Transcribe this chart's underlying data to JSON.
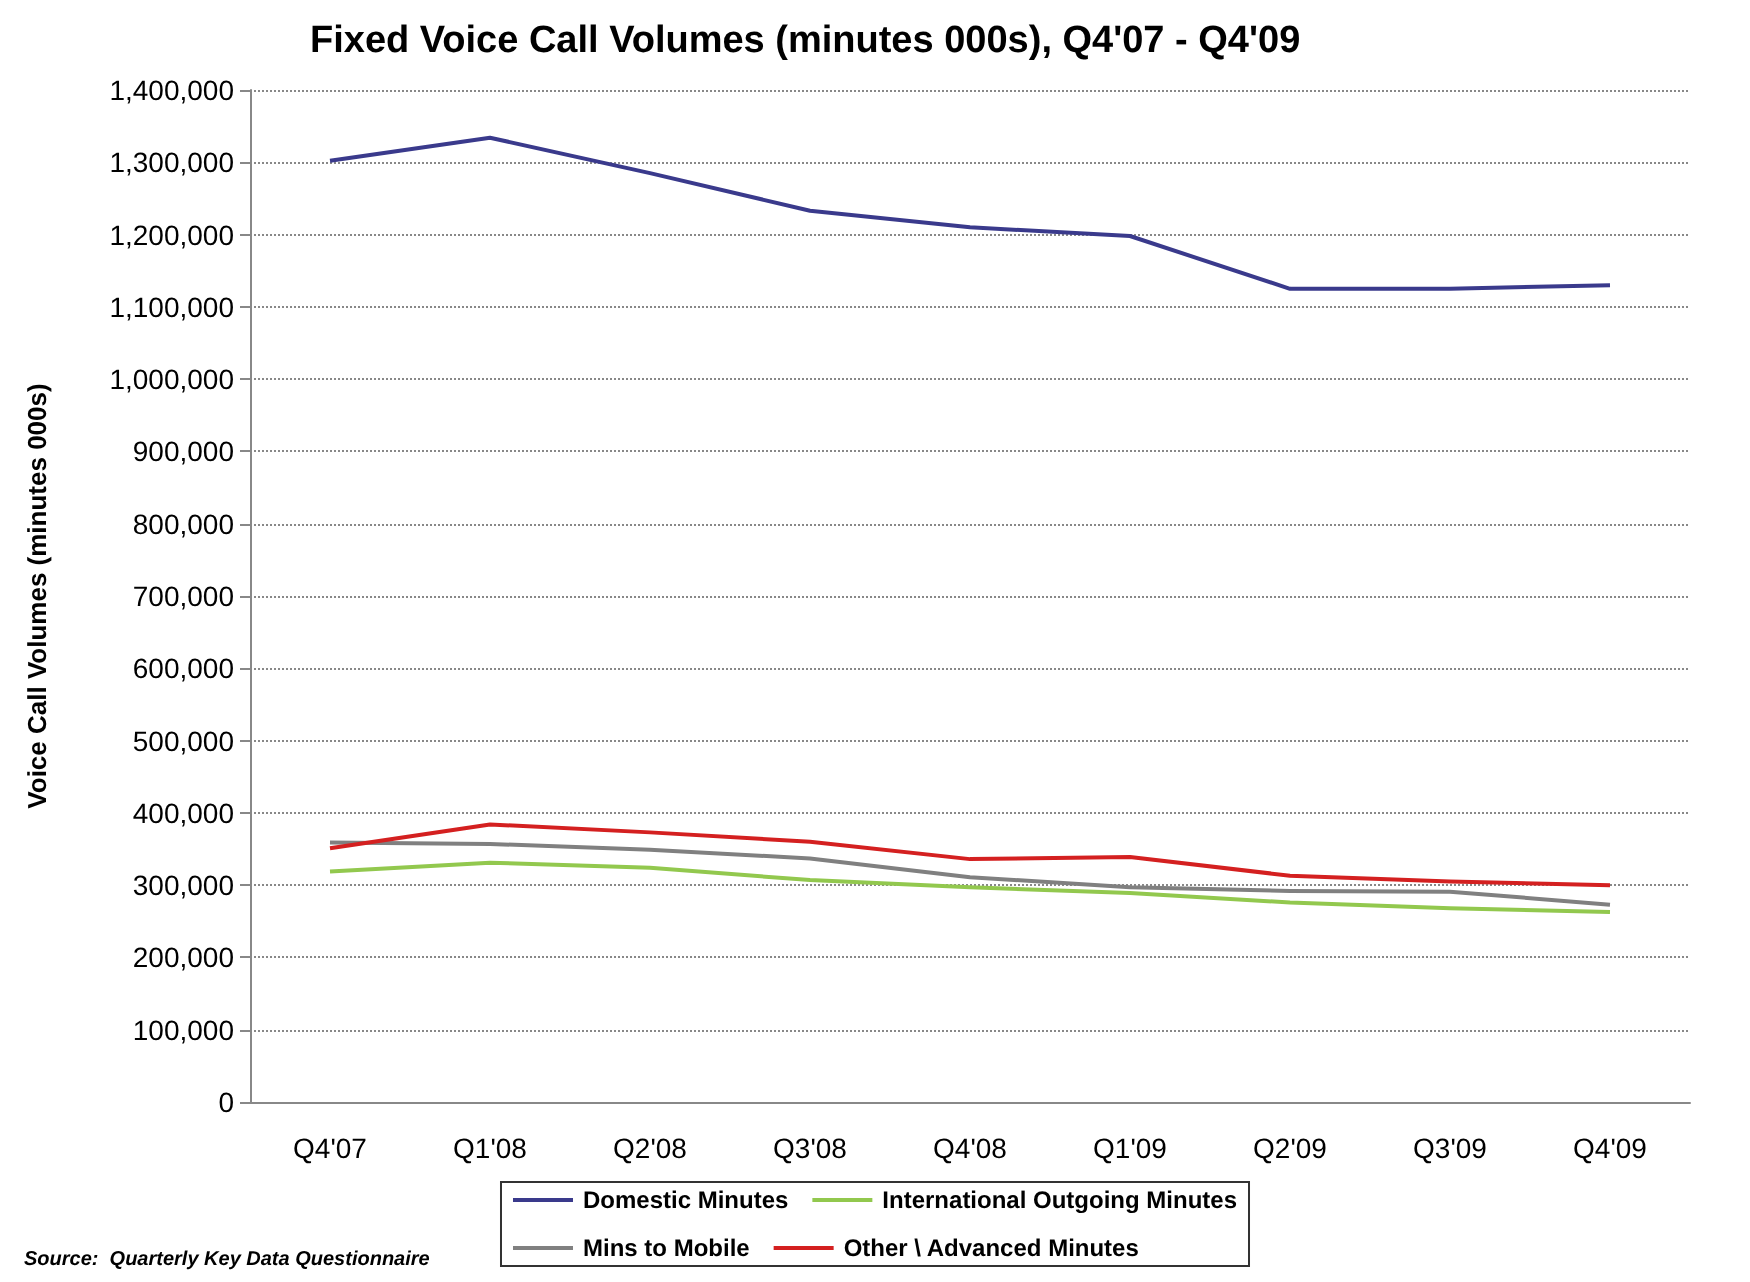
{
  "chart_data": {
    "type": "line",
    "title": "Fixed Voice Call Volumes (minutes 000s), Q4'07 - Q4'09",
    "ylabel": "Voice Call Volumes (minutes 000s)",
    "categories": [
      "Q4'07",
      "Q1'08",
      "Q2'08",
      "Q3'08",
      "Q4'08",
      "Q1'09",
      "Q2'09",
      "Q3'09",
      "Q4'09"
    ],
    "series": [
      {
        "name": "Domestic Minutes",
        "color": "#3a3a8c",
        "values": [
          1302000,
          1334000,
          1285000,
          1233000,
          1210000,
          1198000,
          1125000,
          1125000,
          1130000
        ]
      },
      {
        "name": "International Outgoing Minutes",
        "color": "#92c84e",
        "values": [
          319000,
          331000,
          324000,
          307000,
          297000,
          289000,
          276000,
          268000,
          263000
        ]
      },
      {
        "name": "Mins to Mobile",
        "color": "#808080",
        "values": [
          359000,
          357000,
          349000,
          337000,
          311000,
          297000,
          292000,
          291000,
          273000
        ]
      },
      {
        "name": "Other \\ Advanced Minutes",
        "color": "#d42020",
        "values": [
          351000,
          384000,
          373000,
          360000,
          336000,
          339000,
          313000,
          305000,
          300000
        ]
      }
    ],
    "ylim": [
      0,
      1400000
    ],
    "yticks": [
      0,
      {
        "value": 100000,
        "label": "100,000"
      },
      {
        "value": 200000,
        "label": "200,000"
      },
      {
        "value": 300000,
        "label": "300,000"
      },
      {
        "value": 400000,
        "label": "400,000"
      },
      {
        "value": 500000,
        "label": "500,000"
      },
      {
        "value": 600000,
        "label": "600,000"
      },
      {
        "value": 700000,
        "label": "700,000"
      },
      {
        "value": 800000,
        "label": "800,000"
      },
      {
        "value": 900000,
        "label": "900,000"
      },
      {
        "value": 1000000,
        "label": "1,000,000"
      },
      {
        "value": 1100000,
        "label": "1,100,000"
      },
      {
        "value": 1200000,
        "label": "1,200,000"
      },
      {
        "value": 1300000,
        "label": "1,300,000"
      },
      {
        "value": 1400000,
        "label": "1,400,000"
      }
    ],
    "grid": "y",
    "legend": "bottom",
    "marker": "none",
    "line_style": "solid",
    "annotations": [
      "Source:  Quarterly Key Data Questionnaire"
    ]
  }
}
